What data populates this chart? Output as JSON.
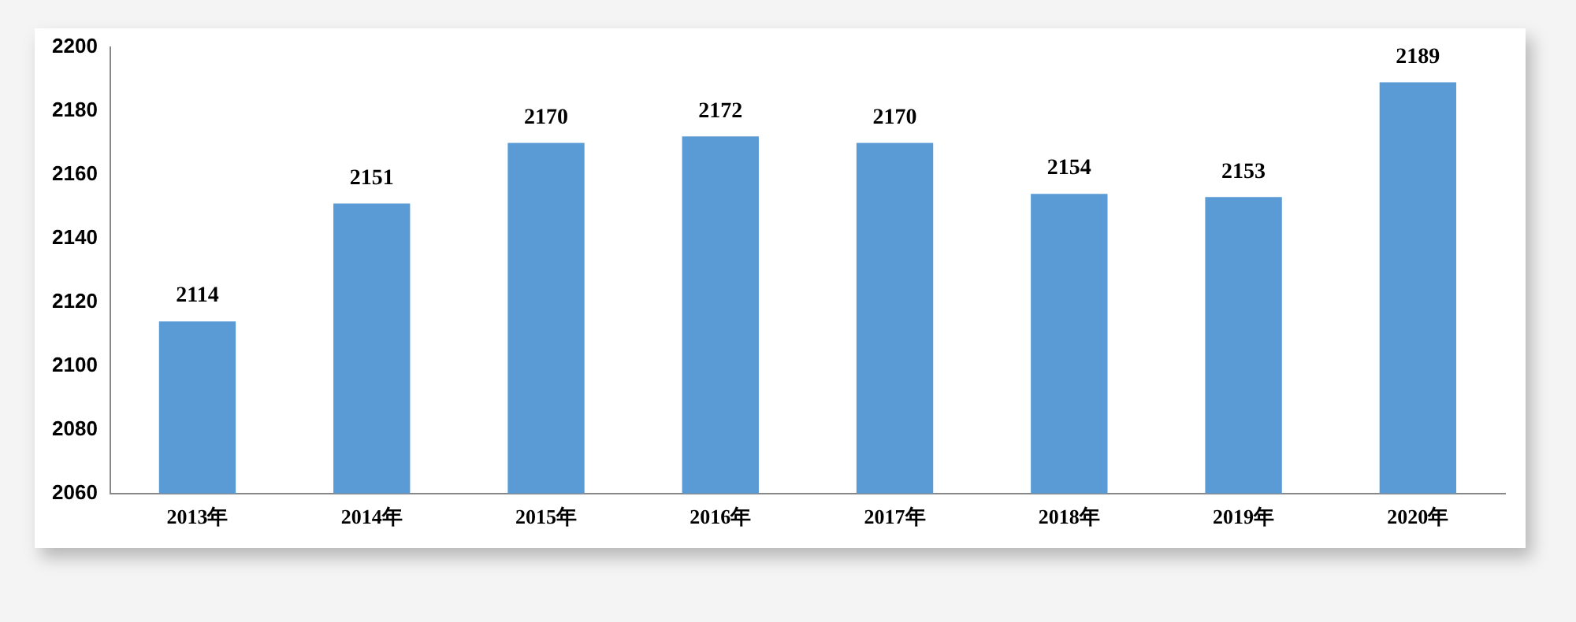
{
  "chart_data": {
    "type": "bar",
    "categories": [
      "2013年",
      "2014年",
      "2015年",
      "2016年",
      "2017年",
      "2018年",
      "2019年",
      "2020年"
    ],
    "values": [
      2114,
      2151,
      2170,
      2172,
      2170,
      2154,
      2153,
      2189
    ],
    "color": "#5b9bd5",
    "ylim": [
      2060,
      2200
    ],
    "yticks": [
      2060,
      2080,
      2100,
      2120,
      2140,
      2160,
      2180,
      2200
    ],
    "grid": false,
    "legend": false,
    "data_labels": true
  }
}
